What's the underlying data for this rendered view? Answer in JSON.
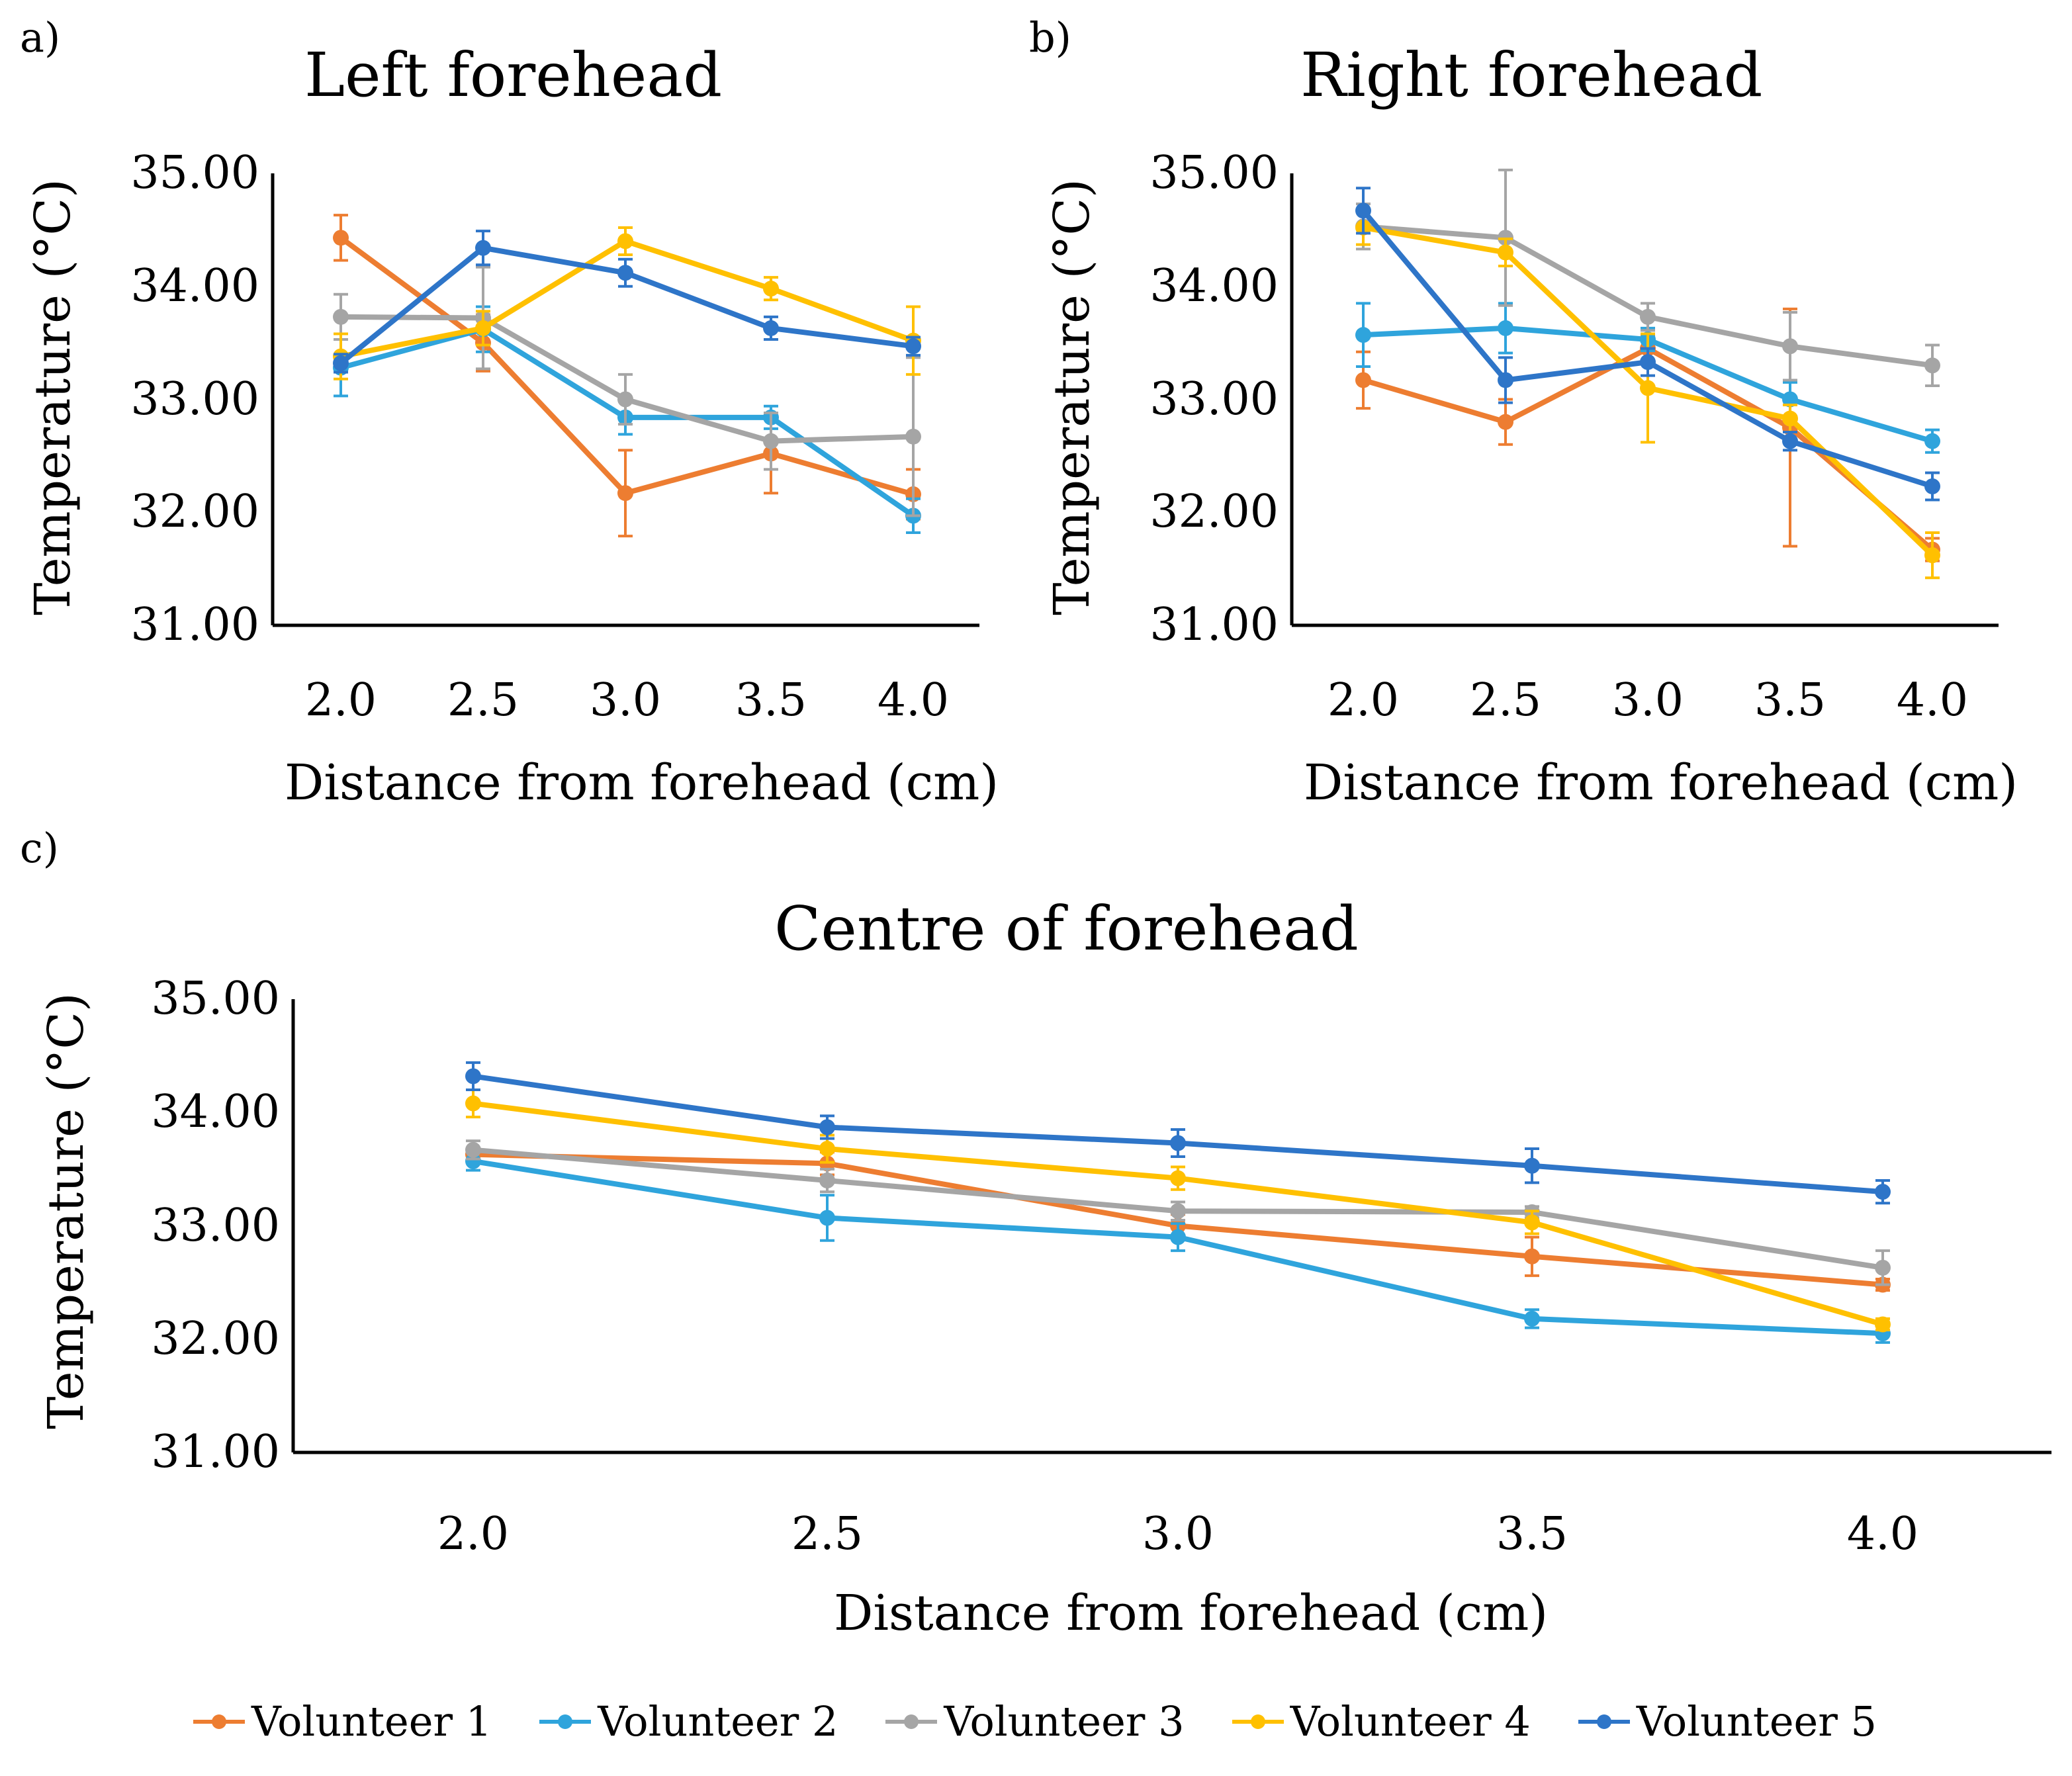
{
  "chart_data": [
    {
      "panel": "a)",
      "type": "line",
      "title": "Left forehead",
      "xlabel": "Distance from forehead (cm)",
      "ylabel": "Temperature (°C)",
      "categories": [
        "2.0",
        "2.5",
        "3.0",
        "3.5",
        "4.0"
      ],
      "yticks": [
        "31.00",
        "32.00",
        "33.00",
        "34.00",
        "35.00"
      ],
      "ylim": [
        31,
        35
      ],
      "series": [
        {
          "name": "Volunteer 1",
          "values": [
            34.43,
            33.5,
            32.17,
            32.52,
            32.16
          ],
          "errors": [
            0.2,
            0.25,
            0.38,
            0.35,
            0.22
          ]
        },
        {
          "name": "Volunteer 2",
          "values": [
            33.28,
            33.62,
            32.84,
            32.84,
            31.97
          ],
          "errors": [
            0.25,
            0.2,
            0.15,
            0.1,
            0.15
          ]
        },
        {
          "name": "Volunteer 3",
          "values": [
            33.73,
            33.72,
            33.0,
            32.63,
            32.67
          ],
          "errors": [
            0.2,
            0.45,
            0.22,
            0.25,
            0.7
          ]
        },
        {
          "name": "Volunteer 4",
          "values": [
            33.38,
            33.63,
            34.4,
            33.98,
            33.52
          ],
          "errors": [
            0.2,
            0.15,
            0.12,
            0.1,
            0.3
          ]
        },
        {
          "name": "Volunteer 5",
          "values": [
            33.32,
            34.34,
            34.12,
            33.63,
            33.47
          ],
          "errors": [
            0.08,
            0.15,
            0.12,
            0.1,
            0.08
          ]
        }
      ]
    },
    {
      "panel": "b)",
      "type": "line",
      "title": "Right forehead",
      "xlabel": "Distance from forehead (cm)",
      "ylabel": "Temperature (°C)",
      "categories": [
        "2.0",
        "2.5",
        "3.0",
        "3.5",
        "4.0"
      ],
      "yticks": [
        "31.00",
        "32.00",
        "33.00",
        "34.00",
        "35.00"
      ],
      "ylim": [
        31,
        35
      ],
      "series": [
        {
          "name": "Volunteer 1",
          "values": [
            33.17,
            32.8,
            33.45,
            32.75,
            31.67
          ],
          "errors": [
            0.25,
            0.2,
            0.12,
            1.05,
            0.1
          ]
        },
        {
          "name": "Volunteer 2",
          "values": [
            33.57,
            33.63,
            33.53,
            33.0,
            32.63
          ],
          "errors": [
            0.28,
            0.22,
            0.1,
            0.15,
            0.1
          ]
        },
        {
          "name": "Volunteer 3",
          "values": [
            34.53,
            34.43,
            33.73,
            33.47,
            33.3
          ],
          "errors": [
            0.2,
            0.6,
            0.12,
            0.3,
            0.18
          ]
        },
        {
          "name": "Volunteer 4",
          "values": [
            34.52,
            34.3,
            33.1,
            32.83,
            31.62
          ],
          "errors": [
            0.15,
            0.12,
            0.48,
            0.12,
            0.2
          ]
        },
        {
          "name": "Volunteer 5",
          "values": [
            34.67,
            33.17,
            33.33,
            32.63,
            32.23
          ],
          "errors": [
            0.2,
            0.2,
            0.12,
            0.08,
            0.12
          ]
        }
      ]
    },
    {
      "panel": "c)",
      "type": "line",
      "title": "Centre of forehead",
      "xlabel": "Distance from forehead (cm)",
      "ylabel": "Temperature (°C)",
      "categories": [
        "2.0",
        "2.5",
        "3.0",
        "3.5",
        "4.0"
      ],
      "yticks": [
        "31.00",
        "32.00",
        "33.00",
        "34.00",
        "35.00"
      ],
      "ylim": [
        31,
        35
      ],
      "series": [
        {
          "name": "Volunteer 1",
          "values": [
            33.63,
            33.55,
            33.0,
            32.73,
            32.48
          ],
          "errors": [
            0.05,
            0.1,
            0.1,
            0.17,
            0.05
          ]
        },
        {
          "name": "Volunteer 2",
          "values": [
            33.57,
            33.07,
            32.9,
            32.18,
            32.05
          ],
          "errors": [
            0.08,
            0.2,
            0.12,
            0.08,
            0.08
          ]
        },
        {
          "name": "Volunteer 3",
          "values": [
            33.67,
            33.4,
            33.13,
            33.12,
            32.63
          ],
          "errors": [
            0.08,
            0.1,
            0.08,
            0.05,
            0.15
          ]
        },
        {
          "name": "Volunteer 4",
          "values": [
            34.08,
            33.68,
            33.42,
            33.03,
            32.13
          ],
          "errors": [
            0.12,
            0.12,
            0.1,
            0.1,
            0.05
          ]
        },
        {
          "name": "Volunteer 5",
          "values": [
            34.32,
            33.87,
            33.73,
            33.53,
            33.3
          ],
          "errors": [
            0.12,
            0.1,
            0.12,
            0.15,
            0.1
          ]
        }
      ]
    }
  ],
  "legend": [
    {
      "name": "Volunteer 1",
      "color": "#ED7D31"
    },
    {
      "name": "Volunteer 2",
      "color": "#2FA4DC"
    },
    {
      "name": "Volunteer 3",
      "color": "#A5A5A5"
    },
    {
      "name": "Volunteer 4",
      "color": "#FFC000"
    },
    {
      "name": "Volunteer 5",
      "color": "#2E75C8"
    }
  ]
}
